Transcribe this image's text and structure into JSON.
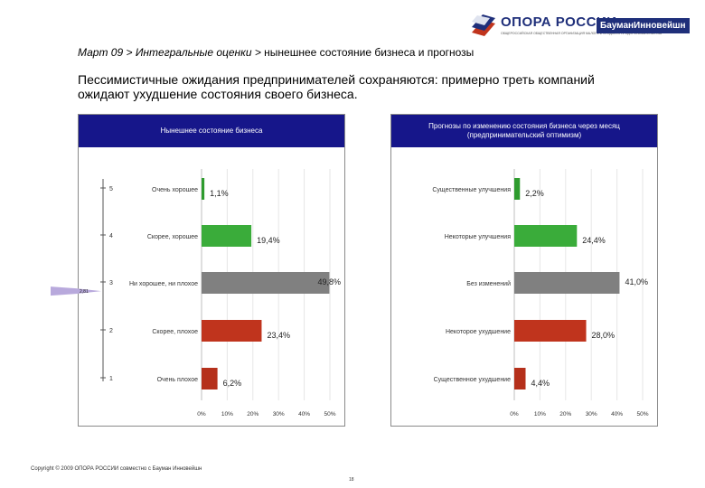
{
  "header": {
    "logo_name": "ОПОРА РОССИИ",
    "logo_subtitle": "ОБЩЕРОССИЙСКАЯ ОБЩЕСТВЕННАЯ ОРГАНИЗАЦИЯ МАЛОГО И СРЕДНЕГО ПРЕДПРИНИМАТЕЛЬСТВА",
    "partner": "БауманИнновейшн",
    "breadcrumb_em": "Март 09 > Интегральные оценки >",
    "breadcrumb_rest": " нынешнее состояние бизнеса и прогнозы",
    "headline": "Пессимистичные ожидания предпринимателей сохраняются: примерно треть компаний ожидают ухудшение состояния своего бизнеса."
  },
  "chart_data": [
    {
      "type": "bar",
      "orientation": "horizontal",
      "title": "Нынешнее состояние бизнеса",
      "categories": [
        "Очень хорошее",
        "Скорее, хорошее",
        "Ни хорошее, ни плохое",
        "Скорее, плохое",
        "Очень плохое"
      ],
      "values": [
        1.1,
        19.4,
        49.8,
        23.4,
        6.2
      ],
      "value_labels": [
        "1,1%",
        "19,4%",
        "49,8%",
        "23,4%",
        "6,2%"
      ],
      "colors": [
        "#2e9b2e",
        "#3aac3a",
        "#808080",
        "#c0341d",
        "#b5301b"
      ],
      "scale_labels": [
        "5",
        "4",
        "3",
        "2",
        "1"
      ],
      "xlim": [
        0,
        50
      ],
      "ticks": [
        "0%",
        "10%",
        "20%",
        "30%",
        "40%",
        "50%"
      ],
      "tick_values": [
        0,
        10,
        20,
        30,
        40,
        50
      ],
      "grid": true,
      "marker_label": "2,81"
    },
    {
      "type": "bar",
      "orientation": "horizontal",
      "title": "Прогнозы по изменению состояния бизнеса через месяц (предпринимательский оптимизм)",
      "categories": [
        "Существенные улучшения",
        "Некоторые улучшения",
        "Без изменений",
        "Некоторое ухудшение",
        "Существенное ухудшение"
      ],
      "values": [
        2.2,
        24.4,
        41.0,
        28.0,
        4.4
      ],
      "value_labels": [
        "2,2%",
        "24,4%",
        "41,0%",
        "28,0%",
        "4,4%"
      ],
      "colors": [
        "#2e9b2e",
        "#3aac3a",
        "#808080",
        "#c0341d",
        "#b5301b"
      ],
      "xlim": [
        0,
        50
      ],
      "ticks": [
        "0%",
        "10%",
        "20%",
        "30%",
        "40%",
        "50%"
      ],
      "tick_values": [
        0,
        10,
        20,
        30,
        40,
        50
      ],
      "grid": true
    }
  ],
  "footer": {
    "copyright": "Copyright © 2009 ОПОРА РОССИИ совместно с Бауман Инновейшн",
    "page": "18"
  }
}
